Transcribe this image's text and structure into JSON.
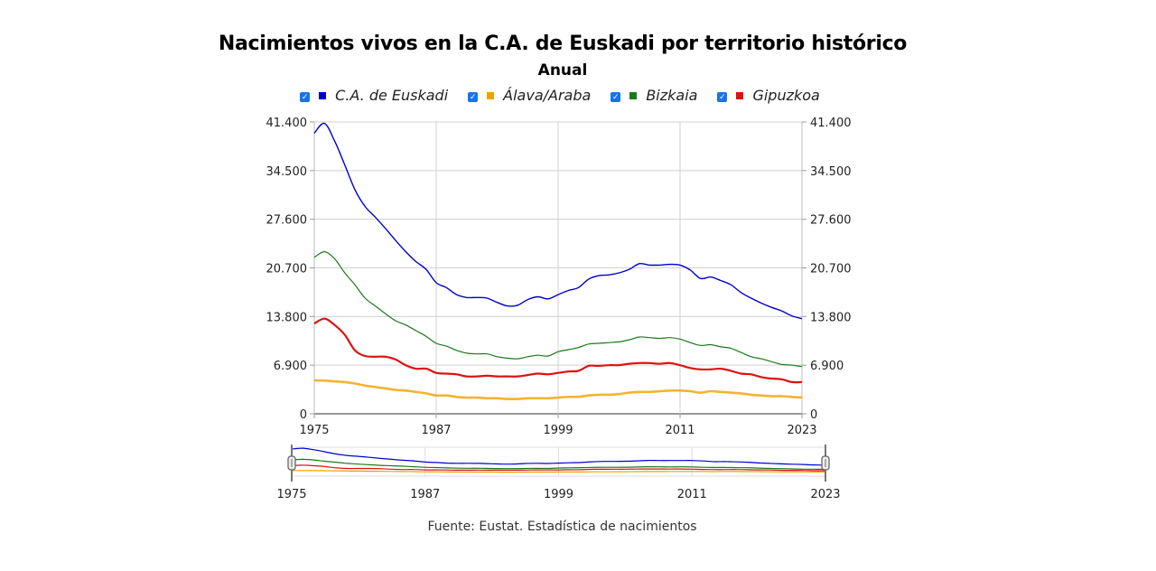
{
  "chart_data": {
    "type": "line",
    "title": "Nacimientos vivos en la C.A. de Euskadi por territorio histórico",
    "subtitle": "Anual",
    "xlabel": "",
    "ylabel": "",
    "source": "Fuente: Eustat. Estadística de nacimientos",
    "xlim": [
      1975,
      2023
    ],
    "ylim": [
      0,
      41400
    ],
    "x_ticks": [
      "1975",
      "1987",
      "1999",
      "2011",
      "2023"
    ],
    "y_ticks": [
      "0",
      "6.900",
      "13.800",
      "20.700",
      "27.600",
      "34.500",
      "41.400"
    ],
    "grid": true,
    "legend_position": "top-center",
    "x": [
      1975,
      1976,
      1977,
      1978,
      1979,
      1980,
      1981,
      1982,
      1983,
      1984,
      1985,
      1986,
      1987,
      1988,
      1989,
      1990,
      1991,
      1992,
      1993,
      1994,
      1995,
      1996,
      1997,
      1998,
      1999,
      2000,
      2001,
      2002,
      2003,
      2004,
      2005,
      2006,
      2007,
      2008,
      2009,
      2010,
      2011,
      2012,
      2013,
      2014,
      2015,
      2016,
      2017,
      2018,
      2019,
      2020,
      2021,
      2022,
      2023
    ],
    "series": [
      {
        "name": "C.A. de Euskadi",
        "color": "#0000cc",
        "values": [
          39800,
          41200,
          38700,
          35300,
          31800,
          29400,
          27900,
          26300,
          24600,
          23000,
          21600,
          20500,
          18600,
          17900,
          16900,
          16500,
          16500,
          16400,
          15800,
          15300,
          15400,
          16200,
          16600,
          16300,
          16900,
          17500,
          17900,
          19100,
          19600,
          19700,
          20000,
          20500,
          21300,
          21100,
          21100,
          21200,
          21100,
          20400,
          19200,
          19400,
          18900,
          18300,
          17200,
          16400,
          15700,
          15100,
          14600,
          13900,
          13500
        ]
      },
      {
        "name": "Álava/Araba",
        "color": "#f0a000",
        "values": [
          4750,
          4700,
          4600,
          4500,
          4300,
          4000,
          3800,
          3600,
          3400,
          3300,
          3100,
          2900,
          2600,
          2600,
          2400,
          2300,
          2300,
          2200,
          2200,
          2100,
          2100,
          2200,
          2200,
          2200,
          2300,
          2400,
          2400,
          2600,
          2700,
          2700,
          2800,
          3000,
          3100,
          3100,
          3200,
          3300,
          3300,
          3200,
          3000,
          3200,
          3100,
          3000,
          2900,
          2700,
          2600,
          2500,
          2500,
          2400,
          2300
        ]
      },
      {
        "name": "Bizkaia",
        "color": "#1a7a1a",
        "values": [
          22200,
          23000,
          22000,
          20000,
          18300,
          16400,
          15300,
          14200,
          13200,
          12600,
          11800,
          11000,
          10000,
          9600,
          9000,
          8600,
          8500,
          8500,
          8100,
          7900,
          7800,
          8100,
          8300,
          8200,
          8800,
          9100,
          9400,
          9900,
          10000,
          10100,
          10200,
          10500,
          10900,
          10800,
          10700,
          10800,
          10600,
          10100,
          9700,
          9800,
          9500,
          9300,
          8700,
          8100,
          7800,
          7400,
          7000,
          6900,
          6700
        ]
      },
      {
        "name": "Gipuzkoa",
        "color": "#dd1111",
        "values": [
          12800,
          13500,
          12600,
          11200,
          9000,
          8200,
          8100,
          8100,
          7700,
          6900,
          6400,
          6400,
          5800,
          5700,
          5600,
          5300,
          5300,
          5400,
          5300,
          5300,
          5300,
          5500,
          5700,
          5600,
          5800,
          6000,
          6100,
          6800,
          6800,
          6900,
          6900,
          7100,
          7200,
          7200,
          7100,
          7200,
          6900,
          6500,
          6300,
          6300,
          6400,
          6100,
          5700,
          5600,
          5200,
          5000,
          4900,
          4500,
          4500
        ]
      }
    ]
  },
  "legend": {
    "checkbox_glyph": "✓"
  }
}
